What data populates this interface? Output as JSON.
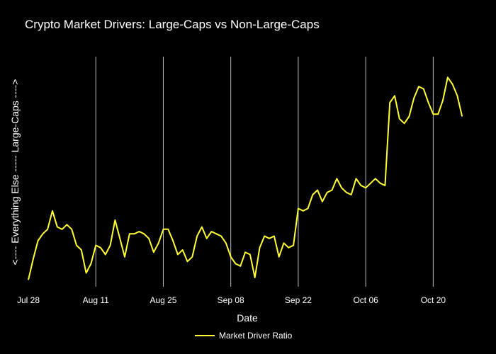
{
  "chart_data": {
    "type": "line",
    "title": "Crypto Market Drivers: Large-Caps vs Non-Large-Caps",
    "xlabel": "Date",
    "ylabel": "<----  Everything Else      -----      Large-Caps  ---->",
    "x_start": "2024-07-28",
    "x_step_days": 1,
    "xlim_days": [
      0,
      91
    ],
    "ylim": [
      0,
      1
    ],
    "ticks": [
      {
        "label": "Jul 28",
        "day": 0
      },
      {
        "label": "Aug 11",
        "day": 14
      },
      {
        "label": "Aug 25",
        "day": 28
      },
      {
        "label": "Sep 08",
        "day": 42
      },
      {
        "label": "Sep 22",
        "day": 56
      },
      {
        "label": "Oct 06",
        "day": 70
      },
      {
        "label": "Oct 20",
        "day": 84
      }
    ],
    "grid": true,
    "legend": "bottom-center",
    "series": [
      {
        "name": "Market Driver Ratio",
        "color": "#ffff33",
        "values": [
          0.03,
          0.12,
          0.2,
          0.23,
          0.25,
          0.33,
          0.26,
          0.25,
          0.27,
          0.25,
          0.18,
          0.16,
          0.06,
          0.1,
          0.18,
          0.17,
          0.14,
          0.18,
          0.29,
          0.21,
          0.13,
          0.23,
          0.23,
          0.24,
          0.23,
          0.21,
          0.15,
          0.19,
          0.25,
          0.25,
          0.2,
          0.14,
          0.16,
          0.11,
          0.13,
          0.22,
          0.26,
          0.21,
          0.24,
          0.23,
          0.22,
          0.19,
          0.13,
          0.1,
          0.09,
          0.15,
          0.14,
          0.04,
          0.17,
          0.22,
          0.21,
          0.22,
          0.13,
          0.19,
          0.17,
          0.18,
          0.34,
          0.33,
          0.34,
          0.4,
          0.42,
          0.37,
          0.41,
          0.42,
          0.47,
          0.43,
          0.41,
          0.4,
          0.47,
          0.44,
          0.43,
          0.45,
          0.47,
          0.45,
          0.44,
          0.8,
          0.83,
          0.73,
          0.71,
          0.74,
          0.82,
          0.87,
          0.86,
          0.8,
          0.75,
          0.75,
          0.81,
          0.91,
          0.88,
          0.83,
          0.74
        ]
      }
    ]
  }
}
